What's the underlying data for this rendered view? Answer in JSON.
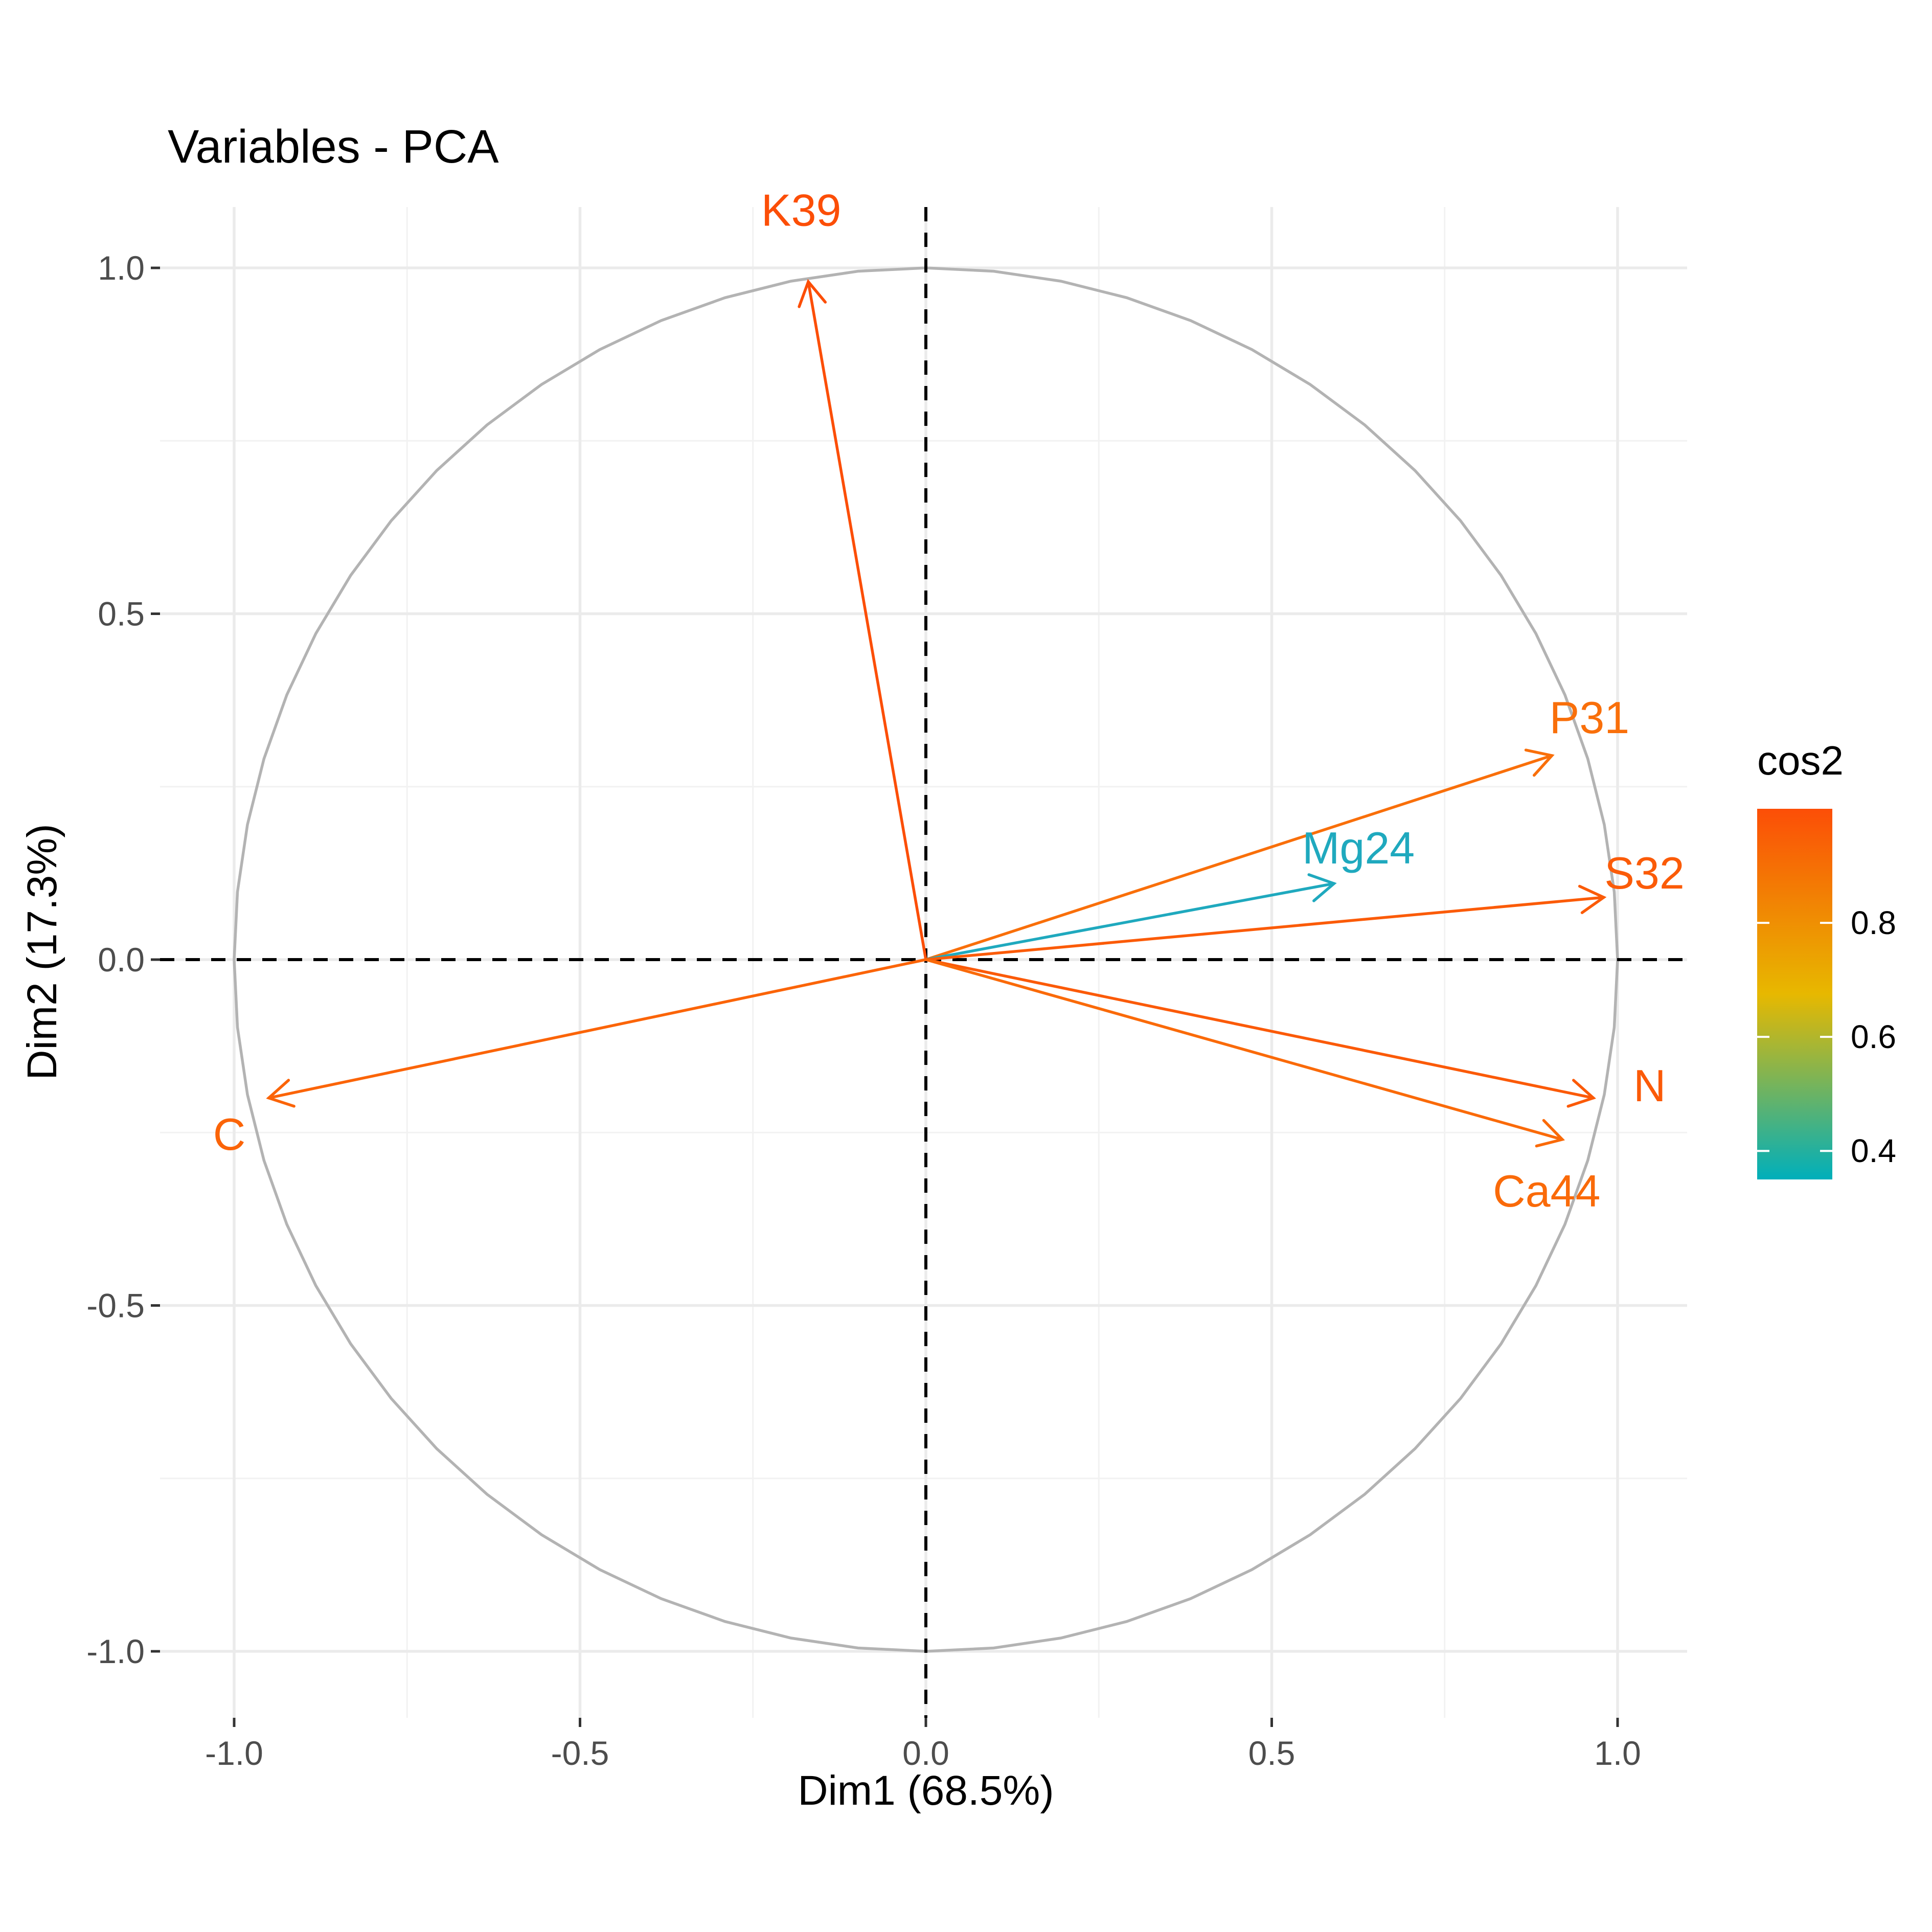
{
  "chart_data": {
    "type": "scatter",
    "title": "Variables - PCA",
    "xlabel": "Dim1 (68.5%)",
    "ylabel": "Dim2 (17.3%)",
    "xlim": [
      -1.1,
      1.1
    ],
    "ylim": [
      -1.1,
      1.1
    ],
    "xticks": [
      -1.0,
      -0.5,
      0.0,
      0.5,
      1.0
    ],
    "yticks": [
      -1.0,
      -0.5,
      0.0,
      0.5,
      1.0
    ],
    "xtick_labels": [
      "-1.0",
      "-0.5",
      "0.0",
      "0.5",
      "1.0"
    ],
    "ytick_labels": [
      "-1.0",
      "-0.5",
      "0.0",
      "0.5",
      "1.0"
    ],
    "grid": true,
    "correlation_circle": true,
    "reference_lines": [
      0,
      0
    ],
    "variables": [
      {
        "name": "K39",
        "x": -0.17,
        "y": 0.98,
        "cos2": 0.99,
        "color": "#FC4E07"
      },
      {
        "name": "P31",
        "x": 0.905,
        "y": 0.295,
        "cos2": 0.9,
        "color": "#F96F0A"
      },
      {
        "name": "Mg24",
        "x": 0.59,
        "y": 0.11,
        "cos2": 0.36,
        "color": "#1FA9BE"
      },
      {
        "name": "S32",
        "x": 0.98,
        "y": 0.09,
        "cos2": 0.97,
        "color": "#FB5B08"
      },
      {
        "name": "N",
        "x": 0.965,
        "y": -0.2,
        "cos2": 0.97,
        "color": "#FB5A08"
      },
      {
        "name": "Ca44",
        "x": 0.92,
        "y": -0.26,
        "cos2": 0.92,
        "color": "#FA6A09"
      },
      {
        "name": "C",
        "x": -0.95,
        "y": -0.2,
        "cos2": 0.94,
        "color": "#FB6408"
      }
    ],
    "legend": {
      "title": "cos2",
      "placement": "right",
      "range": [
        0.35,
        1.0
      ],
      "labels": [
        "0.4",
        "0.6",
        "0.8"
      ],
      "label_values": [
        0.4,
        0.6,
        0.8
      ],
      "colors": [
        "#00AFBB",
        "#E7B800",
        "#FC4E07"
      ]
    }
  }
}
